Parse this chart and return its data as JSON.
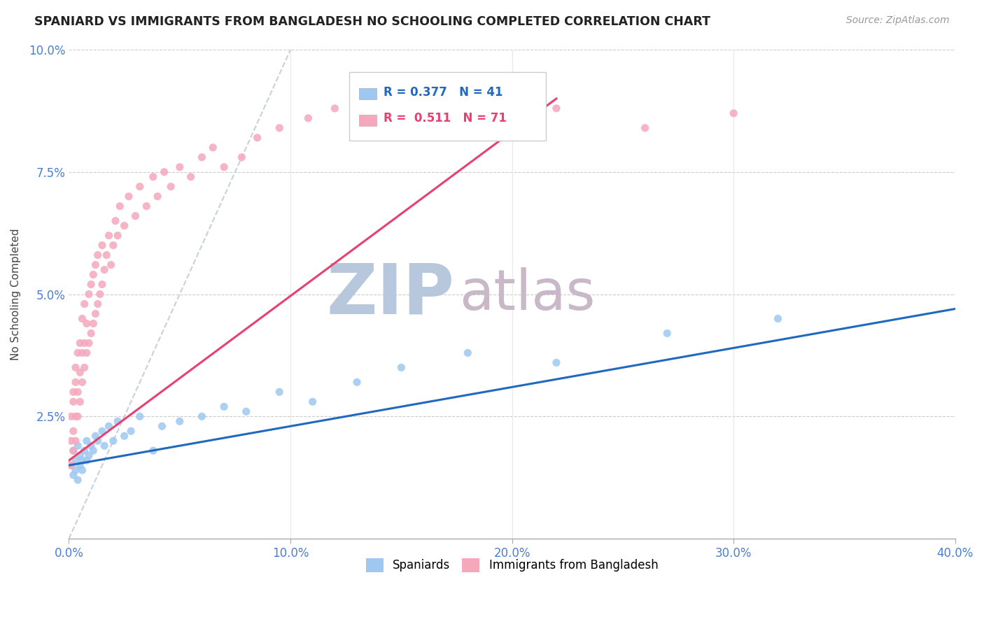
{
  "title": "SPANIARD VS IMMIGRANTS FROM BANGLADESH NO SCHOOLING COMPLETED CORRELATION CHART",
  "source_text": "Source: ZipAtlas.com",
  "ylabel": "No Schooling Completed",
  "xlim": [
    0.0,
    0.4
  ],
  "ylim": [
    0.0,
    0.1
  ],
  "xticks": [
    0.0,
    0.1,
    0.2,
    0.3,
    0.4
  ],
  "yticks": [
    0.0,
    0.025,
    0.05,
    0.075,
    0.1
  ],
  "xtick_labels": [
    "0.0%",
    "10.0%",
    "20.0%",
    "30.0%",
    "40.0%"
  ],
  "ytick_labels": [
    "",
    "2.5%",
    "5.0%",
    "7.5%",
    "10.0%"
  ],
  "legend_r1": "R = 0.377",
  "legend_n1": "N = 41",
  "legend_r2": "R =  0.511",
  "legend_n2": "N = 71",
  "color_spaniard": "#9ec8f0",
  "color_bangladesh": "#f5a8bc",
  "color_spaniard_line": "#2068c0",
  "color_bangladesh_line": "#e84070",
  "color_ref_line": "#c8d0dc",
  "watermark_zip": "ZIP",
  "watermark_atlas": "atlas",
  "watermark_color_zip": "#b8c8dc",
  "watermark_color_atlas": "#c8b8c8",
  "spaniard_x": [
    0.001,
    0.002,
    0.002,
    0.003,
    0.003,
    0.004,
    0.004,
    0.005,
    0.005,
    0.006,
    0.006,
    0.007,
    0.008,
    0.008,
    0.009,
    0.01,
    0.011,
    0.012,
    0.013,
    0.015,
    0.016,
    0.018,
    0.02,
    0.022,
    0.025,
    0.028,
    0.032,
    0.038,
    0.042,
    0.05,
    0.06,
    0.07,
    0.08,
    0.095,
    0.11,
    0.13,
    0.15,
    0.18,
    0.22,
    0.27,
    0.32
  ],
  "spaniard_y": [
    0.015,
    0.013,
    0.018,
    0.014,
    0.016,
    0.012,
    0.019,
    0.015,
    0.017,
    0.016,
    0.014,
    0.018,
    0.016,
    0.02,
    0.017,
    0.019,
    0.018,
    0.021,
    0.02,
    0.022,
    0.019,
    0.023,
    0.02,
    0.024,
    0.021,
    0.022,
    0.025,
    0.018,
    0.023,
    0.024,
    0.025,
    0.027,
    0.026,
    0.03,
    0.028,
    0.032,
    0.035,
    0.038,
    0.036,
    0.042,
    0.045
  ],
  "bangladesh_x": [
    0.001,
    0.001,
    0.001,
    0.002,
    0.002,
    0.002,
    0.002,
    0.003,
    0.003,
    0.003,
    0.003,
    0.004,
    0.004,
    0.004,
    0.005,
    0.005,
    0.005,
    0.006,
    0.006,
    0.006,
    0.007,
    0.007,
    0.007,
    0.008,
    0.008,
    0.009,
    0.009,
    0.01,
    0.01,
    0.011,
    0.011,
    0.012,
    0.012,
    0.013,
    0.013,
    0.014,
    0.015,
    0.015,
    0.016,
    0.017,
    0.018,
    0.019,
    0.02,
    0.021,
    0.022,
    0.023,
    0.025,
    0.027,
    0.03,
    0.032,
    0.035,
    0.038,
    0.04,
    0.043,
    0.046,
    0.05,
    0.055,
    0.06,
    0.065,
    0.07,
    0.078,
    0.085,
    0.095,
    0.108,
    0.12,
    0.14,
    0.16,
    0.19,
    0.22,
    0.26,
    0.3
  ],
  "bangladesh_y": [
    0.015,
    0.02,
    0.025,
    0.018,
    0.022,
    0.028,
    0.03,
    0.02,
    0.025,
    0.032,
    0.035,
    0.025,
    0.03,
    0.038,
    0.028,
    0.034,
    0.04,
    0.032,
    0.038,
    0.045,
    0.035,
    0.04,
    0.048,
    0.038,
    0.044,
    0.04,
    0.05,
    0.042,
    0.052,
    0.044,
    0.054,
    0.046,
    0.056,
    0.048,
    0.058,
    0.05,
    0.052,
    0.06,
    0.055,
    0.058,
    0.062,
    0.056,
    0.06,
    0.065,
    0.062,
    0.068,
    0.064,
    0.07,
    0.066,
    0.072,
    0.068,
    0.074,
    0.07,
    0.075,
    0.072,
    0.076,
    0.074,
    0.078,
    0.08,
    0.076,
    0.078,
    0.082,
    0.084,
    0.086,
    0.088,
    0.085,
    0.09,
    0.086,
    0.088,
    0.084,
    0.087
  ],
  "spaniard_trendline_x": [
    0.0,
    0.4
  ],
  "spaniard_trendline_y": [
    0.015,
    0.047
  ],
  "bangladesh_trendline_x": [
    0.0,
    0.22
  ],
  "bangladesh_trendline_y": [
    0.016,
    0.09
  ],
  "ref_line_x": [
    0.0,
    0.1
  ],
  "ref_line_y": [
    0.0,
    0.1
  ]
}
